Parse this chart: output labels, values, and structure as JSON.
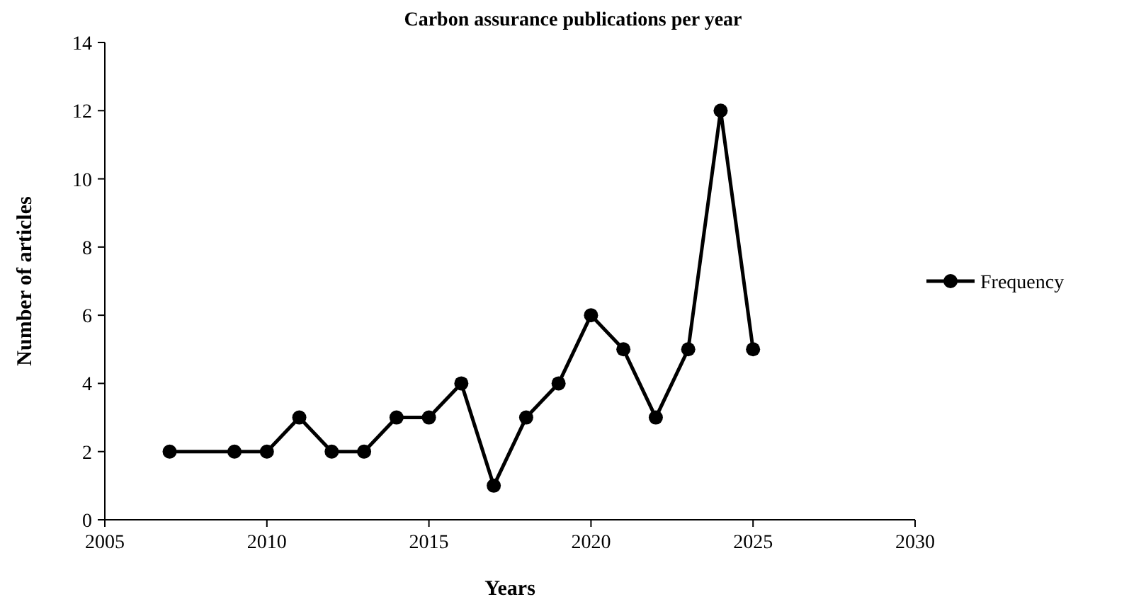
{
  "chart_data": {
    "type": "line",
    "title": "Carbon assurance publications per year",
    "xlabel": "Years",
    "ylabel": "Number of articles",
    "x": [
      2007,
      2009,
      2010,
      2011,
      2012,
      2013,
      2014,
      2015,
      2016,
      2017,
      2018,
      2019,
      2020,
      2021,
      2022,
      2023,
      2024,
      2025
    ],
    "series": [
      {
        "name": "Frequency",
        "color": "#000000",
        "values": [
          2,
          2,
          2,
          3,
          2,
          2,
          3,
          3,
          4,
          1,
          3,
          4,
          6,
          5,
          3,
          5,
          12,
          5
        ]
      }
    ],
    "xlim": [
      2005,
      2030
    ],
    "xticks": [
      2005,
      2010,
      2015,
      2020,
      2025,
      2030
    ],
    "ylim": [
      0,
      14
    ],
    "yticks": [
      0,
      2,
      4,
      6,
      8,
      10,
      12,
      14
    ],
    "grid": false,
    "legend": "right",
    "marker": "circle",
    "line_style": "solid"
  }
}
